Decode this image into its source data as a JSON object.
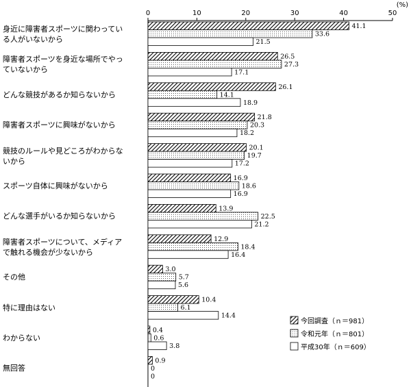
{
  "chart_data": {
    "type": "bar",
    "orientation": "horizontal",
    "unit_label": "(%)",
    "xlim": [
      0,
      50
    ],
    "xticks": [
      0,
      10,
      20,
      30,
      40,
      50
    ],
    "grid": false,
    "legend_position": "bottom-right",
    "categories": [
      "身近に障害者スポーツに関わってい\nる人がいないから",
      "障害者スポーツを身近な場所でやっ\nていないから",
      "どんな競技があるか知らないから",
      "障害者スポーツに興味がないから",
      "競技のルールや見どころがわからな\nいから",
      "スポーツ自体に興味がないから",
      "どんな選手がいるか知らないから",
      "障害者スポーツについて、メディア\nで触れる機会が少ないから",
      "その他",
      "特に理由はない",
      "わからない",
      "無回答"
    ],
    "series": [
      {
        "name": "今回調査（ｎ＝981）",
        "pattern": "hatch",
        "values": [
          41.1,
          26.5,
          26.1,
          21.8,
          20.1,
          16.9,
          13.9,
          12.9,
          3.0,
          10.4,
          0.4,
          0.9
        ],
        "labels": [
          "41.1",
          "26.5",
          "26.1",
          "21.8",
          "20.1",
          "16.9",
          "13.9",
          "12.9",
          "3.0",
          "10.4",
          "0.4",
          "0.9"
        ]
      },
      {
        "name": "令和元年（ｎ＝801）",
        "pattern": "dots",
        "values": [
          33.6,
          27.3,
          14.1,
          20.3,
          19.7,
          18.6,
          22.5,
          18.4,
          5.7,
          6.1,
          0.6,
          0
        ],
        "labels": [
          "33.6",
          "27.3",
          "14.1",
          "20.3",
          "19.7",
          "18.6",
          "22.5",
          "18.4",
          "5.7",
          "6.1",
          "0.6",
          "0"
        ]
      },
      {
        "name": "平成30年（ｎ＝609）",
        "pattern": "blank",
        "values": [
          21.5,
          17.1,
          18.9,
          18.2,
          17.2,
          16.9,
          21.2,
          16.4,
          5.6,
          14.4,
          3.8,
          0
        ],
        "labels": [
          "21.5",
          "17.1",
          "18.9",
          "18.2",
          "17.2",
          "16.9",
          "21.2",
          "16.4",
          "5.6",
          "14.4",
          "3.8",
          "0"
        ]
      }
    ]
  }
}
